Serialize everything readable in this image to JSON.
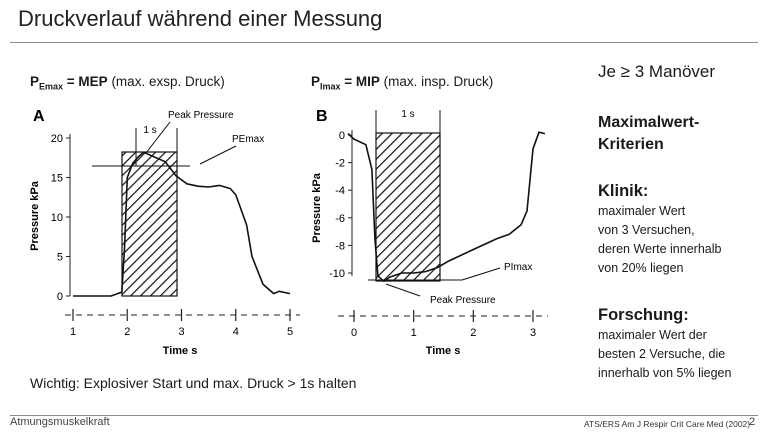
{
  "slide": {
    "title": "Druckverlauf während einer Messung",
    "left_heading": {
      "symbol": "P",
      "sub": "Emax",
      "bold": " = MEP",
      "rest": " (max. exsp. Druck)"
    },
    "right_heading": {
      "symbol": "P",
      "sub": "Imax",
      "bold": " = MIP",
      "rest": " (max. insp. Druck)"
    },
    "note": "Wichtig:  Explosiver Start und max. Druck > 1s halten",
    "footer_left": "Atmungsmuskelkraft",
    "footer_source": "ATS/ERS Am J Respir Crit Care Med (2002)",
    "page_number": "2"
  },
  "panel_a": {
    "letter": "A",
    "ylabel": "Pressure kPa",
    "xlabel": "Time  s",
    "y_ticks": [
      "20",
      "15",
      "10",
      "5",
      "0"
    ],
    "x_ticks": [
      "1",
      "2",
      "3",
      "4",
      "5"
    ],
    "window_label": "1 s",
    "peak_label": "Peak Pressure",
    "curve_label": "PEmax"
  },
  "panel_b": {
    "letter": "B",
    "ylabel": "Pressure kPa",
    "xlabel": "Time  s",
    "y_ticks": [
      "0",
      "-2",
      "-4",
      "-6",
      "-8",
      "-10"
    ],
    "x_ticks": [
      "0",
      "1",
      "2",
      "3"
    ],
    "window_label": "1 s",
    "peak_label": "Peak Pressure",
    "curve_label": "PImax"
  },
  "right_column": {
    "maneuver": "Je ≥ 3 Manöver",
    "criteria_heading_1": "Maximalwert-",
    "criteria_heading_2": "Kriterien",
    "clinic_heading": "Klinik:",
    "clinic_lines": [
      "maximaler Wert",
      "von 3 Versuchen,",
      "deren Werte innerhalb",
      "von 20% liegen"
    ],
    "research_heading": "Forschung:",
    "research_lines": [
      "maximaler Wert der",
      "besten 2 Versuche, die",
      "innerhalb von 5% liegen"
    ]
  },
  "chart_data": [
    {
      "type": "line",
      "title": "A",
      "xlabel": "Time  s",
      "ylabel": "Pressure kPa",
      "xlim": [
        1,
        5
      ],
      "ylim": [
        0,
        20
      ],
      "x_ticks": [
        1,
        2,
        3,
        4,
        5
      ],
      "y_ticks": [
        0,
        5,
        10,
        15,
        20
      ],
      "series": [
        {
          "name": "PEmax",
          "x": [
            1.0,
            1.3,
            1.7,
            1.9,
            1.95,
            2.0,
            2.1,
            2.2,
            2.3,
            2.5,
            2.7,
            2.9,
            3.1,
            3.3,
            3.5,
            3.7,
            3.9,
            4.0,
            4.2,
            4.3,
            4.5,
            4.7,
            4.8,
            5.0
          ],
          "y": [
            0,
            0,
            0,
            0.5,
            6,
            15,
            16.8,
            17.6,
            18.2,
            17.6,
            17.0,
            15.2,
            14.2,
            13.9,
            13.8,
            14.0,
            13.6,
            12.8,
            9,
            5,
            1.5,
            0.3,
            0.6,
            0.3
          ]
        }
      ],
      "annotations": [
        "1 s",
        "Peak Pressure",
        "PEmax"
      ]
    },
    {
      "type": "line",
      "title": "B",
      "xlabel": "Time  s",
      "ylabel": "Pressure kPa",
      "xlim": [
        0,
        3
      ],
      "ylim": [
        -10,
        0
      ],
      "x_ticks": [
        0,
        1,
        2,
        3
      ],
      "y_ticks": [
        0,
        -2,
        -4,
        -6,
        -8,
        -10
      ],
      "series": [
        {
          "name": "PImax",
          "x": [
            -0.1,
            0.0,
            0.2,
            0.3,
            0.35,
            0.4,
            0.5,
            0.6,
            0.8,
            1.0,
            1.2,
            1.4,
            1.6,
            1.8,
            2.0,
            2.2,
            2.4,
            2.6,
            2.8,
            2.9,
            3.0,
            3.1,
            3.2
          ],
          "y": [
            0.1,
            -0.3,
            -0.7,
            -2.5,
            -7.5,
            -10.2,
            -10.6,
            -10.3,
            -10.0,
            -10.0,
            -9.9,
            -9.6,
            -9.1,
            -8.7,
            -8.3,
            -7.9,
            -7.5,
            -7.2,
            -6.5,
            -5.5,
            -1.0,
            0.2,
            0.1
          ]
        }
      ],
      "annotations": [
        "1 s",
        "Peak Pressure",
        "PImax"
      ]
    }
  ]
}
